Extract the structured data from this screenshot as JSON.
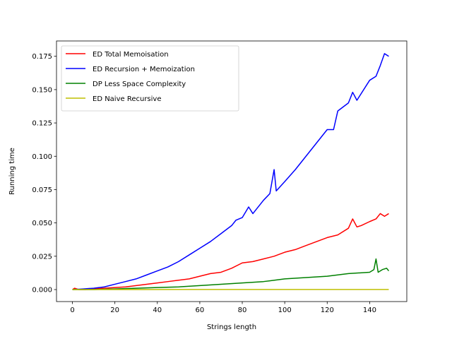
{
  "chart_data": {
    "type": "line",
    "title": "",
    "xlabel": "Strings length",
    "ylabel": "Running time",
    "xlim": [
      -7.5,
      157.5
    ],
    "ylim": [
      -0.009,
      0.1865
    ],
    "x_ticks": [
      0,
      20,
      40,
      60,
      80,
      100,
      120,
      140
    ],
    "y_ticks": [
      0.0,
      0.025,
      0.05,
      0.075,
      0.1,
      0.125,
      0.15,
      0.175
    ],
    "x_tick_labels": [
      "0",
      "20",
      "40",
      "60",
      "80",
      "100",
      "120",
      "140"
    ],
    "y_tick_labels": [
      "0.000",
      "0.025",
      "0.050",
      "0.075",
      "0.100",
      "0.125",
      "0.150",
      "0.175"
    ],
    "grid": false,
    "legend_position": "top-left",
    "series": [
      {
        "name": "ED Total Memoisation",
        "color": "#ff0000",
        "points": [
          [
            0,
            0.0
          ],
          [
            1,
            0.001
          ],
          [
            3,
            0.0
          ],
          [
            6,
            0.0
          ],
          [
            10,
            0.0005
          ],
          [
            15,
            0.001
          ],
          [
            20,
            0.0015
          ],
          [
            25,
            0.002
          ],
          [
            30,
            0.003
          ],
          [
            35,
            0.004
          ],
          [
            40,
            0.005
          ],
          [
            45,
            0.006
          ],
          [
            50,
            0.007
          ],
          [
            55,
            0.008
          ],
          [
            60,
            0.01
          ],
          [
            65,
            0.012
          ],
          [
            70,
            0.013
          ],
          [
            75,
            0.016
          ],
          [
            80,
            0.02
          ],
          [
            85,
            0.021
          ],
          [
            90,
            0.023
          ],
          [
            95,
            0.025
          ],
          [
            100,
            0.028
          ],
          [
            105,
            0.03
          ],
          [
            110,
            0.033
          ],
          [
            115,
            0.036
          ],
          [
            120,
            0.039
          ],
          [
            125,
            0.041
          ],
          [
            130,
            0.046
          ],
          [
            132,
            0.053
          ],
          [
            134,
            0.047
          ],
          [
            136,
            0.048
          ],
          [
            140,
            0.051
          ],
          [
            143,
            0.053
          ],
          [
            145,
            0.057
          ],
          [
            147,
            0.055
          ],
          [
            149,
            0.057
          ]
        ]
      },
      {
        "name": "ED Recursion + Memoization",
        "color": "#0000ff",
        "points": [
          [
            0,
            0.0
          ],
          [
            5,
            0.0005
          ],
          [
            10,
            0.001
          ],
          [
            15,
            0.002
          ],
          [
            20,
            0.004
          ],
          [
            25,
            0.006
          ],
          [
            30,
            0.008
          ],
          [
            35,
            0.011
          ],
          [
            40,
            0.014
          ],
          [
            45,
            0.017
          ],
          [
            50,
            0.021
          ],
          [
            55,
            0.026
          ],
          [
            60,
            0.031
          ],
          [
            65,
            0.036
          ],
          [
            70,
            0.042
          ],
          [
            75,
            0.048
          ],
          [
            77,
            0.052
          ],
          [
            80,
            0.054
          ],
          [
            83,
            0.062
          ],
          [
            85,
            0.057
          ],
          [
            90,
            0.067
          ],
          [
            93,
            0.072
          ],
          [
            95,
            0.09
          ],
          [
            96,
            0.074
          ],
          [
            100,
            0.081
          ],
          [
            105,
            0.09
          ],
          [
            110,
            0.1
          ],
          [
            115,
            0.11
          ],
          [
            120,
            0.12
          ],
          [
            123,
            0.12
          ],
          [
            125,
            0.134
          ],
          [
            130,
            0.14
          ],
          [
            132,
            0.148
          ],
          [
            134,
            0.142
          ],
          [
            140,
            0.157
          ],
          [
            143,
            0.16
          ],
          [
            145,
            0.168
          ],
          [
            147,
            0.177
          ],
          [
            149,
            0.175
          ]
        ]
      },
      {
        "name": "DP Less Space Complexity",
        "color": "#008000",
        "points": [
          [
            0,
            0.0
          ],
          [
            10,
            0.0
          ],
          [
            20,
            0.0005
          ],
          [
            30,
            0.001
          ],
          [
            40,
            0.0015
          ],
          [
            50,
            0.002
          ],
          [
            60,
            0.003
          ],
          [
            70,
            0.004
          ],
          [
            80,
            0.005
          ],
          [
            90,
            0.006
          ],
          [
            100,
            0.008
          ],
          [
            110,
            0.009
          ],
          [
            120,
            0.01
          ],
          [
            130,
            0.012
          ],
          [
            140,
            0.013
          ],
          [
            142,
            0.015
          ],
          [
            143,
            0.023
          ],
          [
            144,
            0.013
          ],
          [
            146,
            0.015
          ],
          [
            148,
            0.016
          ],
          [
            149,
            0.014
          ]
        ]
      },
      {
        "name": "ED Naive Recursive",
        "color": "#bfbf00",
        "points": [
          [
            0,
            0.0
          ],
          [
            30,
            0.0001
          ],
          [
            33,
            0.0
          ],
          [
            60,
            0.0001
          ],
          [
            90,
            0.0001
          ],
          [
            120,
            0.0001
          ],
          [
            149,
            0.0001
          ]
        ]
      }
    ]
  }
}
